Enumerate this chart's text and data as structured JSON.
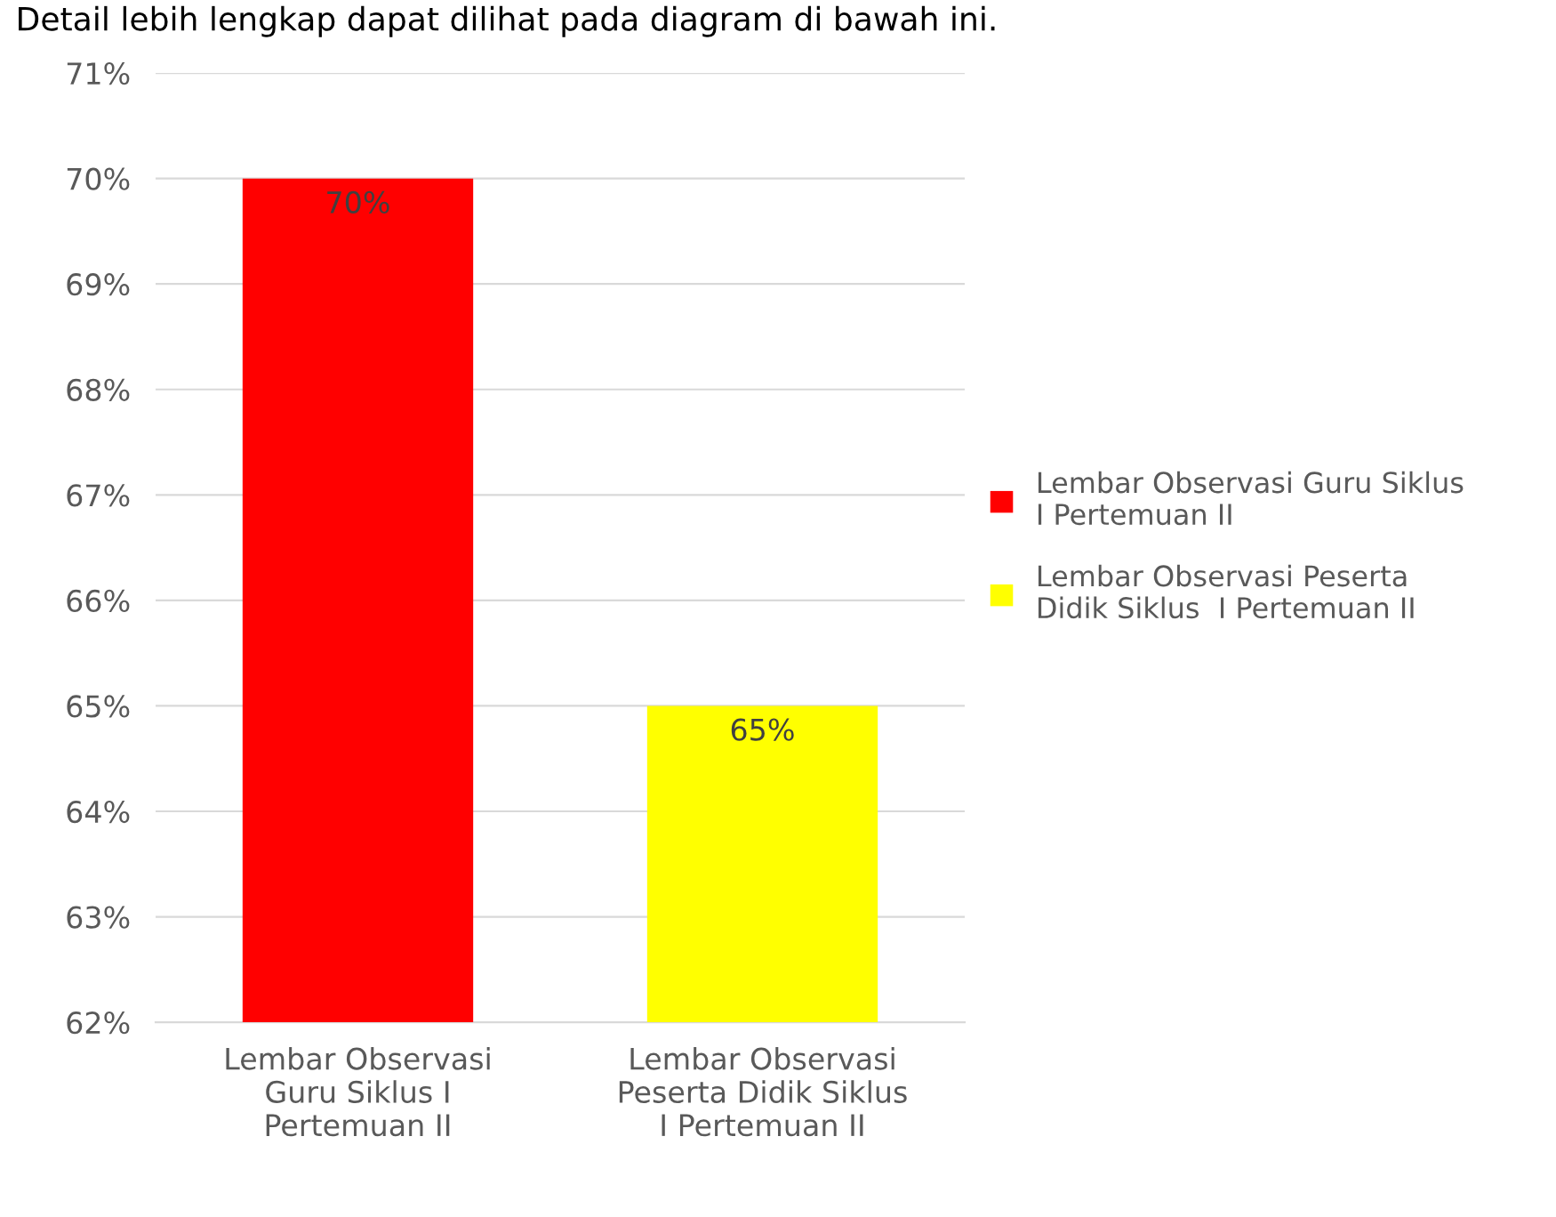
{
  "chart_data": {
    "type": "bar",
    "categories": [
      "Lembar Observasi Guru Siklus I Pertemuan II",
      "Lembar Observasi Peserta Didik Siklus  I Pertemuan II"
    ],
    "series": [
      {
        "name": "Lembar Observasi Guru Siklus I Pertemuan II",
        "color": "#ff0000",
        "values": [
          70,
          null
        ],
        "value_labels": [
          "70%",
          null
        ]
      },
      {
        "name": "Lembar Observasi Peserta Didik Siklus  I Pertemuan II",
        "color": "#ffff00",
        "values": [
          null,
          65
        ],
        "value_labels": [
          null,
          "65%"
        ]
      }
    ],
    "ylim": [
      62,
      71
    ],
    "yticks": [
      {
        "value": 62,
        "label": "62%"
      },
      {
        "value": 63,
        "label": "63%"
      },
      {
        "value": 64,
        "label": "64%"
      },
      {
        "value": 65,
        "label": "65%"
      },
      {
        "value": 66,
        "label": "66%"
      },
      {
        "value": 67,
        "label": "67%"
      },
      {
        "value": 68,
        "label": "68%"
      },
      {
        "value": 69,
        "label": "69%"
      },
      {
        "value": 70,
        "label": "70%"
      },
      {
        "value": 71,
        "label": "71%"
      }
    ],
    "grid": "y",
    "legend": "right",
    "annotations": [
      "Detail lebih lengkap dapat dilihat pada diagram di bawah ini."
    ]
  }
}
